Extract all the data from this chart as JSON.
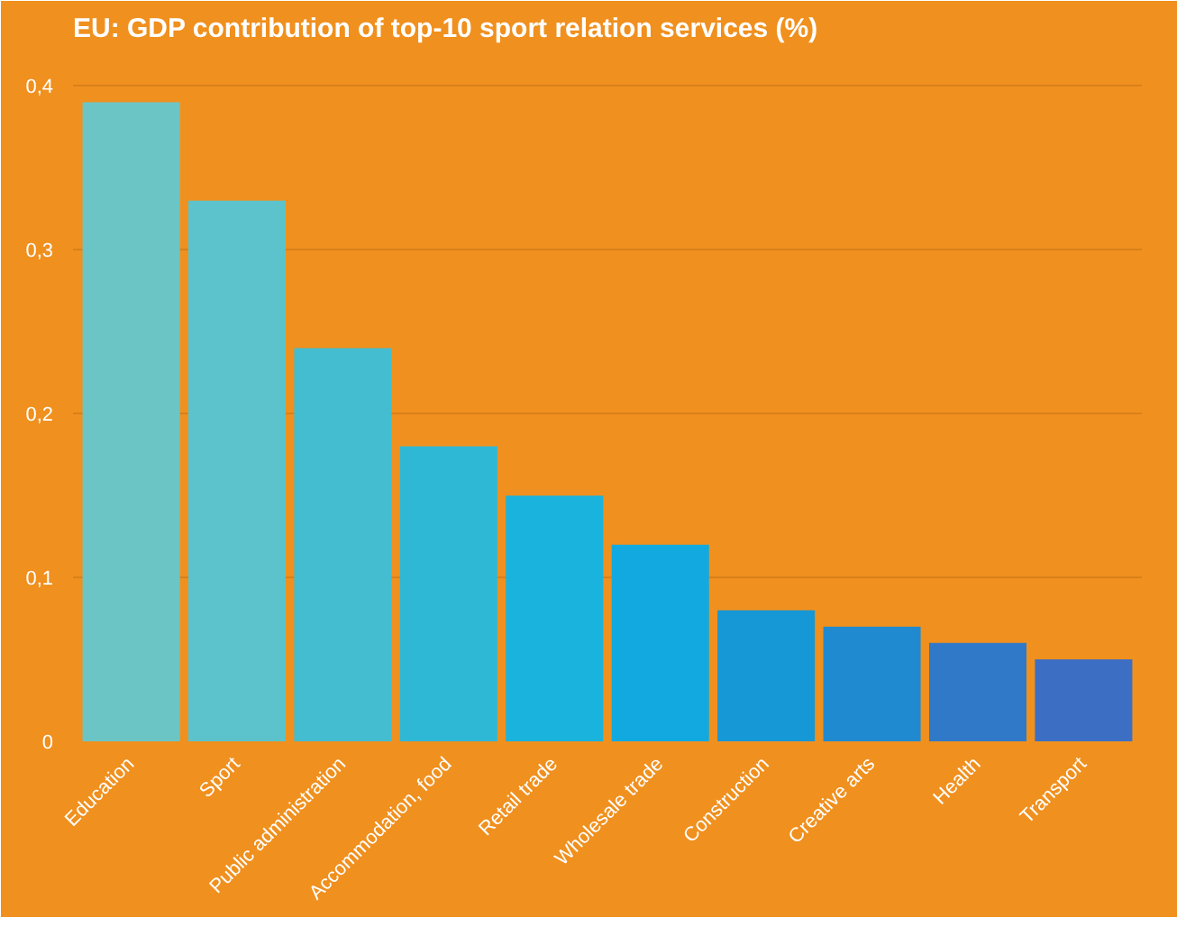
{
  "chart_data": {
    "type": "bar",
    "title": "EU: GDP contribution of top-10 sport relation services (%)",
    "categories": [
      "Education",
      "Sport",
      "Public administration",
      "Accommodation, food",
      "Retail trade",
      "Wholesale trade",
      "Construction",
      "Creative arts",
      "Health",
      "Transport"
    ],
    "values": [
      0.39,
      0.33,
      0.24,
      0.18,
      0.15,
      0.12,
      0.08,
      0.07,
      0.06,
      0.05
    ],
    "colors": [
      "#6cc5c5",
      "#5cc3cc",
      "#45bdd0",
      "#2fb8d6",
      "#1ab3dd",
      "#12a9e0",
      "#1697d6",
      "#1f8ad0",
      "#3079c8",
      "#3c6fc4"
    ],
    "ylim": [
      0,
      0.42
    ],
    "yticks": [
      {
        "value": 0,
        "label": "0"
      },
      {
        "value": 0.1,
        "label": "0,1"
      },
      {
        "value": 0.2,
        "label": "0,2"
      },
      {
        "value": 0.3,
        "label": "0,3"
      },
      {
        "value": 0.4,
        "label": "0,4"
      }
    ],
    "grid": "y"
  }
}
